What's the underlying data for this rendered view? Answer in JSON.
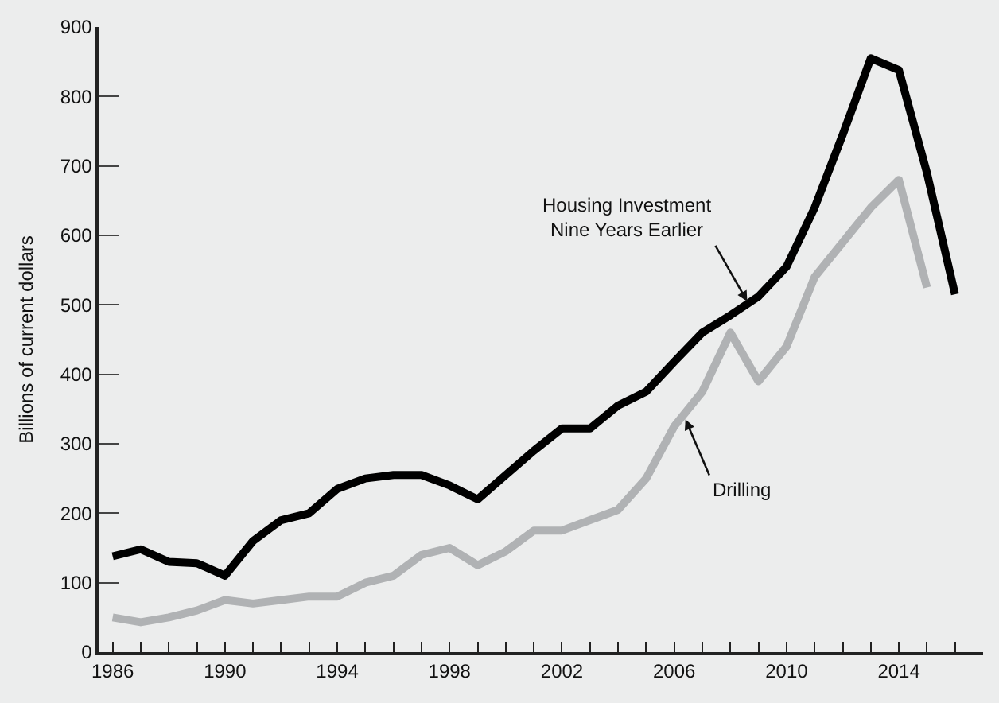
{
  "chart_data": {
    "type": "line",
    "ylabel": "Billions of current dollars",
    "xlim": [
      1985.5,
      2017
    ],
    "ylim": [
      0,
      900
    ],
    "xticks": [
      1986,
      {
        "value": 1987,
        "label": null
      },
      {
        "value": 1988,
        "label": null
      },
      {
        "value": 1989,
        "label": null
      },
      1990,
      {
        "value": 1991,
        "label": null
      },
      {
        "value": 1992,
        "label": null
      },
      {
        "value": 1993,
        "label": null
      },
      1994,
      {
        "value": 1995,
        "label": null
      },
      {
        "value": 1996,
        "label": null
      },
      {
        "value": 1997,
        "label": null
      },
      1998,
      {
        "value": 1999,
        "label": null
      },
      {
        "value": 2000,
        "label": null
      },
      {
        "value": 2001,
        "label": null
      },
      2002,
      {
        "value": 2003,
        "label": null
      },
      {
        "value": 2004,
        "label": null
      },
      {
        "value": 2005,
        "label": null
      },
      2006,
      {
        "value": 2007,
        "label": null
      },
      {
        "value": 2008,
        "label": null
      },
      {
        "value": 2009,
        "label": null
      },
      2010,
      {
        "value": 2011,
        "label": null
      },
      {
        "value": 2012,
        "label": null
      },
      {
        "value": 2013,
        "label": null
      },
      2014,
      {
        "value": 2015,
        "label": null
      },
      {
        "value": 2016,
        "label": null
      }
    ],
    "yticks": [
      0,
      100,
      200,
      300,
      400,
      500,
      600,
      700,
      800,
      900
    ],
    "grid": false,
    "marker": "none",
    "line_style": "solid",
    "series": [
      {
        "color": "#000000",
        "x": [
          1986,
          1987,
          1988,
          1989,
          1990,
          1991,
          1992,
          1993,
          1994,
          1995,
          1996,
          1997,
          1998,
          1999,
          2000,
          2001,
          2002,
          2003,
          2004,
          2005,
          2006,
          2007,
          2008,
          2009,
          2010,
          2011,
          2012,
          2013,
          2014,
          2015,
          2016
        ],
        "values": [
          138,
          148,
          130,
          128,
          110,
          160,
          190,
          200,
          235,
          250,
          255,
          255,
          240,
          220,
          255,
          290,
          322,
          322,
          355,
          375,
          418,
          460,
          485,
          512,
          555,
          640,
          745,
          855,
          838,
          690,
          515
        ]
      },
      {
        "color": "#b0b2b4",
        "x": [
          1986,
          1987,
          1988,
          1989,
          1990,
          1991,
          1992,
          1993,
          1994,
          1995,
          1996,
          1997,
          1998,
          1999,
          2000,
          2001,
          2002,
          2003,
          2004,
          2005,
          2006,
          2007,
          2008,
          2009,
          2010,
          2011,
          2012,
          2013,
          2014,
          2015
        ],
        "values": [
          50,
          43,
          50,
          60,
          75,
          70,
          75,
          80,
          80,
          100,
          110,
          140,
          150,
          125,
          145,
          175,
          175,
          190,
          205,
          250,
          325,
          375,
          460,
          390,
          440,
          540,
          590,
          640,
          680,
          525
        ]
      }
    ],
    "annotations": [
      {
        "text": "Housing Investment\nNine Years Earlier",
        "x": 2008.6,
        "y": 505
      },
      {
        "text": "Drilling",
        "x": 2006.4,
        "y": 335
      }
    ]
  }
}
